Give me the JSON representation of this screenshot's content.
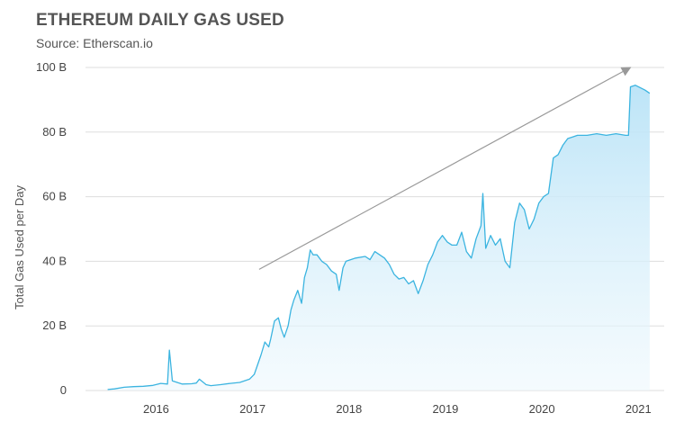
{
  "chart_data": {
    "type": "area",
    "title": "ETHEREUM DAILY GAS USED",
    "subtitle": "Source: Etherscan.io",
    "xlabel": "",
    "ylabel": "Total Gas Used per Day",
    "x_tick_labels": [
      "2016",
      "2017",
      "2018",
      "2019",
      "2020",
      "2021"
    ],
    "y_tick_labels": [
      "0",
      "20 B",
      "40 B",
      "60 B",
      "80 B",
      "100 B"
    ],
    "ylim": [
      0,
      100
    ],
    "xlim": [
      2015.6,
      2021.6
    ],
    "grid": true,
    "line_color": "#3bb4e0",
    "fill_color": "#bfe6f8",
    "trend_arrow": {
      "from": [
        2017.4,
        37.5
      ],
      "to": [
        2021.25,
        100
      ]
    },
    "series": [
      {
        "x": [
          2015.83,
          2015.9,
          2016.0,
          2016.1,
          2016.2,
          2016.3,
          2016.38,
          2016.45,
          2016.47,
          2016.5,
          2016.55,
          2016.6,
          2016.7,
          2016.75,
          2016.78,
          2016.85,
          2016.9,
          2017.0,
          2017.1,
          2017.2,
          2017.3,
          2017.35,
          2017.42,
          2017.46,
          2017.5,
          2017.52,
          2017.56,
          2017.6,
          2017.63,
          2017.66,
          2017.7,
          2017.73,
          2017.76,
          2017.8,
          2017.84,
          2017.87,
          2017.9,
          2017.93,
          2017.96,
          2018.0,
          2018.05,
          2018.1,
          2018.15,
          2018.2,
          2018.23,
          2018.27,
          2018.3,
          2018.4,
          2018.5,
          2018.55,
          2018.6,
          2018.7,
          2018.75,
          2018.8,
          2018.85,
          2018.9,
          2018.95,
          2019.0,
          2019.05,
          2019.1,
          2019.15,
          2019.2,
          2019.25,
          2019.3,
          2019.35,
          2019.4,
          2019.45,
          2019.5,
          2019.55,
          2019.6,
          2019.65,
          2019.7,
          2019.72,
          2019.75,
          2019.8,
          2019.85,
          2019.9,
          2019.95,
          2020.0,
          2020.05,
          2020.1,
          2020.15,
          2020.2,
          2020.25,
          2020.3,
          2020.35,
          2020.4,
          2020.45,
          2020.5,
          2020.55,
          2020.6,
          2020.65,
          2020.7,
          2020.8,
          2020.9,
          2021.0,
          2021.1,
          2021.2,
          2021.23,
          2021.25,
          2021.3,
          2021.4,
          2021.45
        ],
        "values": [
          0.3,
          0.5,
          1.0,
          1.2,
          1.3,
          1.6,
          2.2,
          2.0,
          12.5,
          3.0,
          2.5,
          2.0,
          2.1,
          2.3,
          3.5,
          1.8,
          1.5,
          1.8,
          2.2,
          2.5,
          3.5,
          5.0,
          11.0,
          15.0,
          13.5,
          16.0,
          21.5,
          22.5,
          19.0,
          16.5,
          20.0,
          25.0,
          28.0,
          31.0,
          27.0,
          35.0,
          38.0,
          43.5,
          42.0,
          42.0,
          40.0,
          39.0,
          37.0,
          36.0,
          31.0,
          38.0,
          40.0,
          41.0,
          41.5,
          40.5,
          43.0,
          41.0,
          39.0,
          36.0,
          34.5,
          35.0,
          33.0,
          34.0,
          30.0,
          34.0,
          39.0,
          42.0,
          46.0,
          48.0,
          46.0,
          45.0,
          45.0,
          49.0,
          43.0,
          41.0,
          47.0,
          51.0,
          61.0,
          44.0,
          48.0,
          45.0,
          47.0,
          40.0,
          38.0,
          52.0,
          58.0,
          56.0,
          50.0,
          53.0,
          58.0,
          60.0,
          61.0,
          72.0,
          73.0,
          76.0,
          78.0,
          78.5,
          79.0,
          79.0,
          79.5,
          79.0,
          79.5,
          79.0,
          79.0,
          94.0,
          94.5,
          93.0,
          92.0
        ]
      }
    ]
  }
}
